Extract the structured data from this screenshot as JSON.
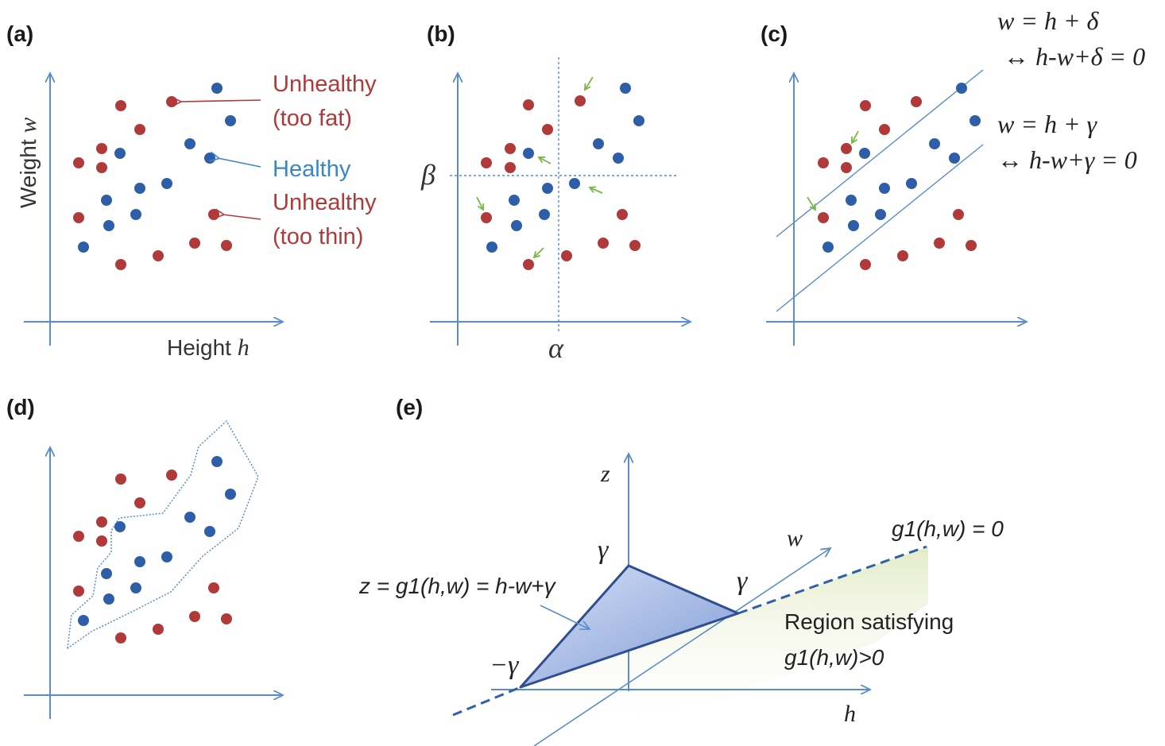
{
  "colors": {
    "axis": "#5b8cc9",
    "red": "#b03a3a",
    "blue": "#2f5ea8",
    "label_red": "#b03a3a",
    "label_blue": "#3a86c6",
    "green_arrow": "#7ab648",
    "plane_fill": "#9fb5e4",
    "plane_edge": "#2f4f8f",
    "region": "#e9f0d2"
  },
  "panels": {
    "a": {
      "label": "(a)",
      "ylabel": "Weight w",
      "xlabel": "Height h",
      "ann_fat": [
        "Unhealthy",
        "(too fat)"
      ],
      "ann_healthy": "Healthy",
      "ann_thin": [
        "Unhealthy",
        "(too thin)"
      ]
    },
    "b": {
      "label": "(b)",
      "alpha": "α",
      "beta": "β"
    },
    "c": {
      "label": "(c)",
      "eq1": "w = h + δ",
      "eq1b": "↔ h-w+δ = 0",
      "eq2": "w = h + γ",
      "eq2b": "↔ h-w+γ = 0"
    },
    "d": {
      "label": "(d)"
    },
    "e": {
      "label": "(e)",
      "z": "z",
      "w": "w",
      "h": "h",
      "gamma_top": "γ",
      "gamma_right": "γ",
      "neg_gamma": "−γ",
      "eq_z": "z = g1(h,w) = h-w+γ",
      "g1_zero": "g1(h,w) = 0",
      "region": [
        "Region satisfying",
        "g1(h,w)>0"
      ]
    }
  }
}
